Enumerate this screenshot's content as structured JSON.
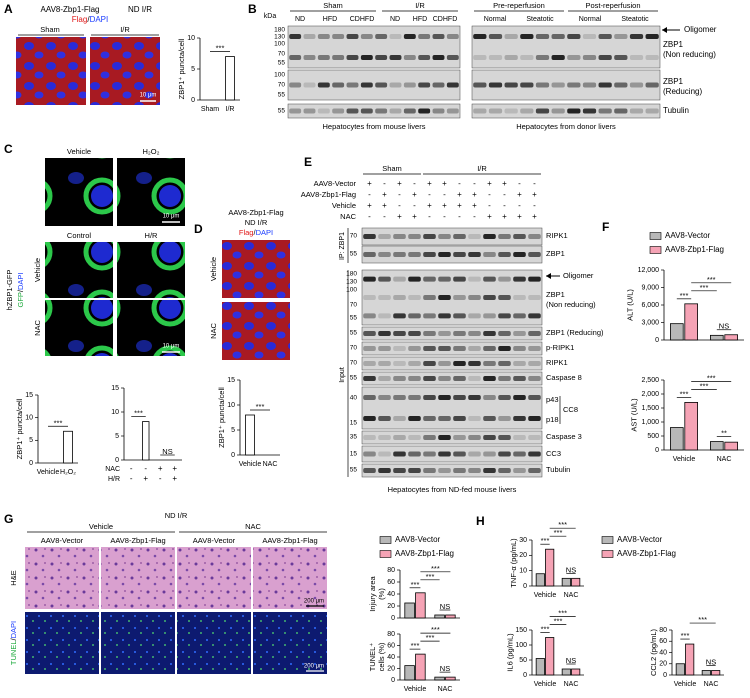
{
  "A": {
    "letter": "A",
    "title": "AAV8-Zbp1-Flag",
    "condition": "ND I/R",
    "stain": [
      "Flag",
      "/",
      "DAPI"
    ],
    "images": [
      "Sham",
      "I/R"
    ],
    "scale": "10 μm",
    "chart": {
      "type": "bar",
      "ylabel": [
        "ZBP1⁺ puncta/cell"
      ],
      "categories": [
        "Sham",
        "I/R"
      ],
      "series": [
        {
          "color": "#ffffff",
          "values": [
            0,
            7
          ]
        }
      ],
      "ylim": [
        0,
        10
      ],
      "yticks": [
        0,
        5,
        10
      ],
      "annotations": [
        "***"
      ]
    }
  },
  "B": {
    "letter": "B",
    "kda": "kDa",
    "groups": [
      "Sham",
      "I/R",
      "Pre-reperfusion",
      "Post-reperfusion"
    ],
    "lanes": [
      "ND",
      "HFD",
      "CDHFD",
      "ND",
      "HFD",
      "CDHFD",
      "Normal",
      "Steatotic",
      "Normal",
      "Steatotic"
    ],
    "markers": [
      180,
      130,
      100,
      70,
      55,
      100,
      70,
      55,
      55
    ],
    "labels": [
      "Oligomer",
      "ZBP1",
      "(Non reducing)",
      "ZBP1",
      "(Reducing)",
      "Tubulin"
    ],
    "footers": [
      "Hepatocytes from mouse livers",
      "Hepatocytes from donor livers"
    ]
  },
  "C": {
    "letter": "C",
    "top": [
      "Vehicle",
      "H₂O₂"
    ],
    "mid": [
      "Control",
      "H/R"
    ],
    "rows": [
      "Vehicle",
      "NAC"
    ],
    "side": "hZBP1-GFP",
    "stain": [
      "GFP",
      "/",
      "DAPI"
    ],
    "scales": [
      "10 μm",
      "10 μm"
    ],
    "charts": [
      {
        "type": "bar",
        "ylabel": [
          "ZBP1⁺ puncta/cell"
        ],
        "categories": [
          "Vehicle",
          "H₂O₂"
        ],
        "series": [
          {
            "color": "#ffffff",
            "values": [
              0,
              7
            ]
          }
        ],
        "ylim": [
          0,
          15
        ],
        "yticks": [
          0,
          5,
          10,
          15
        ],
        "annotations": [
          "***"
        ]
      },
      {
        "type": "bar",
        "sign_rows": [
          {
            "name": "NAC",
            "signs": [
              "-",
              "-",
              "+",
              "+"
            ]
          },
          {
            "name": "H/R",
            "signs": [
              "-",
              "+",
              "-",
              "+"
            ]
          }
        ],
        "series": [
          {
            "color": "#ffffff",
            "values": [
              0,
              8,
              0,
              0
            ]
          }
        ],
        "ylim": [
          0,
          15
        ],
        "yticks": [
          0,
          5,
          10,
          15
        ],
        "annotations": [
          "***",
          "NS"
        ]
      }
    ]
  },
  "D": {
    "letter": "D",
    "title": "AAV8-Zbp1-Flag",
    "condition": "ND I/R",
    "stain": [
      "Flag",
      "/",
      "DAPI"
    ],
    "rows": [
      "Vehicle",
      "NAC"
    ],
    "chart": {
      "type": "bar",
      "ylabel": [
        "ZBP1⁺ puncta/cell"
      ],
      "categories": [
        "Vehicle",
        "NAC"
      ],
      "series": [
        {
          "color": "#ffffff",
          "values": [
            8,
            0
          ]
        }
      ],
      "ylim": [
        0,
        15
      ],
      "yticks": [
        0,
        5,
        10,
        15
      ],
      "annotations": [
        "***"
      ]
    }
  },
  "E": {
    "letter": "E",
    "groups": [
      "Sham",
      "I/R"
    ],
    "rows": [
      {
        "name": "AAV8-Vector",
        "signs": [
          "+",
          "-",
          "+",
          "-",
          "+",
          "+",
          "-",
          "-",
          "+",
          "+",
          "-",
          "-"
        ]
      },
      {
        "name": "AAV8-Zbp1-Flag",
        "signs": [
          "-",
          "+",
          "-",
          "+",
          "-",
          "-",
          "+",
          "+",
          "-",
          "-",
          "+",
          "+"
        ]
      },
      {
        "name": "Vehicle",
        "signs": [
          "+",
          "+",
          "-",
          "-",
          "+",
          "+",
          "+",
          "+",
          "-",
          "-",
          "-",
          "-"
        ]
      },
      {
        "name": "NAC",
        "signs": [
          "-",
          "-",
          "+",
          "+",
          "-",
          "-",
          "-",
          "-",
          "+",
          "+",
          "+",
          "+"
        ]
      }
    ],
    "ip": "IP: ZBP1",
    "input": "Input",
    "markers": [
      70,
      55,
      180,
      130,
      100,
      70,
      55,
      55,
      70,
      70,
      55,
      40,
      15,
      35,
      15,
      55
    ],
    "labels": [
      "RIPK1",
      "ZBP1",
      "Oligomer",
      "ZBP1",
      "(Non reducing)",
      "ZBP1 (Reducing)",
      "p-RIPK1",
      "RIPK1",
      "Caspase 8",
      "p43",
      "p18",
      "CC8",
      "Caspase 3",
      "CC3",
      "Tubulin"
    ],
    "footer": "Hepatocytes from ND-fed mouse livers"
  },
  "F": {
    "letter": "F",
    "legend": [
      {
        "name": "AAV8-Vector",
        "color": "#b8b8b8"
      },
      {
        "name": "AAV8-Zbp1-Flag",
        "color": "#f5a3b5"
      }
    ],
    "charts": [
      {
        "type": "bar",
        "ylabel": [
          "ALT (U/L)"
        ],
        "series": [
          {
            "values": [
              2800,
              800
            ]
          },
          {
            "values": [
              6200,
              900
            ]
          }
        ],
        "ylim": [
          0,
          12000
        ],
        "yticks": [
          0,
          {
            "value": 3000,
            "label": "3,000"
          },
          {
            "value": 6000,
            "label": "6,000"
          },
          {
            "value": 9000,
            "label": "9,000"
          },
          {
            "value": 12000,
            "label": "12,000"
          }
        ],
        "annotations": [
          "***",
          "***",
          "***",
          "NS"
        ]
      },
      {
        "type": "bar",
        "ylabel": [
          "AST (U/L)"
        ],
        "categories": [
          "Vehicle",
          "NAC"
        ],
        "series": [
          {
            "values": [
              800,
              300
            ]
          },
          {
            "values": [
              1700,
              280
            ]
          }
        ],
        "ylim": [
          0,
          2500
        ],
        "yticks": [
          0,
          500,
          {
            "value": 1000,
            "label": "1,000"
          },
          {
            "value": 1500,
            "label": "1,500"
          },
          {
            "value": 2000,
            "label": "2,000"
          },
          {
            "value": 2500,
            "label": "2,500"
          }
        ],
        "annotations": [
          "***",
          "***",
          "***",
          "**"
        ]
      }
    ]
  },
  "G": {
    "letter": "G",
    "title": "ND I/R",
    "treatments": [
      "Vehicle",
      "NAC"
    ],
    "columns": [
      "AAV8-Vector",
      "AAV8-Zbp1-Flag",
      "AAV8-Vector",
      "AAV8-Zbp1-Flag"
    ],
    "he": "H&E",
    "tunel": [
      "TUNEL",
      "/",
      "DAPI"
    ],
    "scales": [
      "200 μm",
      "200 μm"
    ],
    "legend": [
      {
        "name": "AAV8-Vector",
        "color": "#b8b8b8"
      },
      {
        "name": "AAV8-Zbp1-Flag",
        "color": "#f5a3b5"
      }
    ],
    "charts": [
      {
        "type": "bar",
        "ylabel": [
          "Injury area",
          "(%)"
        ],
        "series": [
          {
            "values": [
              25,
              5
            ]
          },
          {
            "values": [
              42,
              5
            ]
          }
        ],
        "ylim": [
          0,
          80
        ],
        "yticks": [
          0,
          20,
          40,
          60,
          80
        ],
        "annotations": [
          "***",
          "***",
          "***",
          "NS"
        ]
      },
      {
        "type": "bar",
        "ylabel": [
          "TUNEL⁺",
          "cells (%)"
        ],
        "categories": [
          "Vehicle",
          "NAC"
        ],
        "series": [
          {
            "values": [
              25,
              5
            ]
          },
          {
            "values": [
              45,
              5
            ]
          }
        ],
        "ylim": [
          0,
          80
        ],
        "yticks": [
          0,
          20,
          40,
          60,
          80
        ],
        "annotations": [
          "***",
          "***",
          "***",
          "NS"
        ]
      }
    ]
  },
  "H": {
    "letter": "H",
    "legend": [
      {
        "name": "AAV8-Vector",
        "color": "#b8b8b8"
      },
      {
        "name": "AAV8-Zbp1-Flag",
        "color": "#f5a3b5"
      }
    ],
    "charts": [
      {
        "type": "bar",
        "ylabel": [
          "TNF-α (pg/mL)"
        ],
        "categories": [
          "Vehicle",
          "NAC"
        ],
        "series": [
          {
            "values": [
              8,
              5
            ]
          },
          {
            "values": [
              24,
              5
            ]
          }
        ],
        "ylim": [
          0,
          30
        ],
        "yticks": [
          0,
          10,
          20,
          30
        ],
        "annotations": [
          "***",
          "***",
          "***",
          "NS"
        ]
      },
      {
        "type": "bar",
        "ylabel": [
          "IL6 (pg/mL)"
        ],
        "categories": [
          "Vehicle",
          "NAC"
        ],
        "series": [
          {
            "values": [
              55,
              20
            ]
          },
          {
            "values": [
              125,
              20
            ]
          }
        ],
        "ylim": [
          0,
          150
        ],
        "yticks": [
          0,
          50,
          100,
          150
        ],
        "annotations": [
          "***",
          "***",
          "***",
          "NS"
        ]
      },
      {
        "type": "bar",
        "ylabel": [
          "CCL2 (pg/mL)"
        ],
        "categories": [
          "Vehicle",
          "NAC"
        ],
        "series": [
          {
            "values": [
              20,
              8
            ]
          },
          {
            "values": [
              55,
              8
            ]
          }
        ],
        "ylim": [
          0,
          80
        ],
        "yticks": [
          0,
          20,
          40,
          60,
          80
        ],
        "annotations": [
          "***",
          "***",
          "NS"
        ]
      }
    ]
  }
}
